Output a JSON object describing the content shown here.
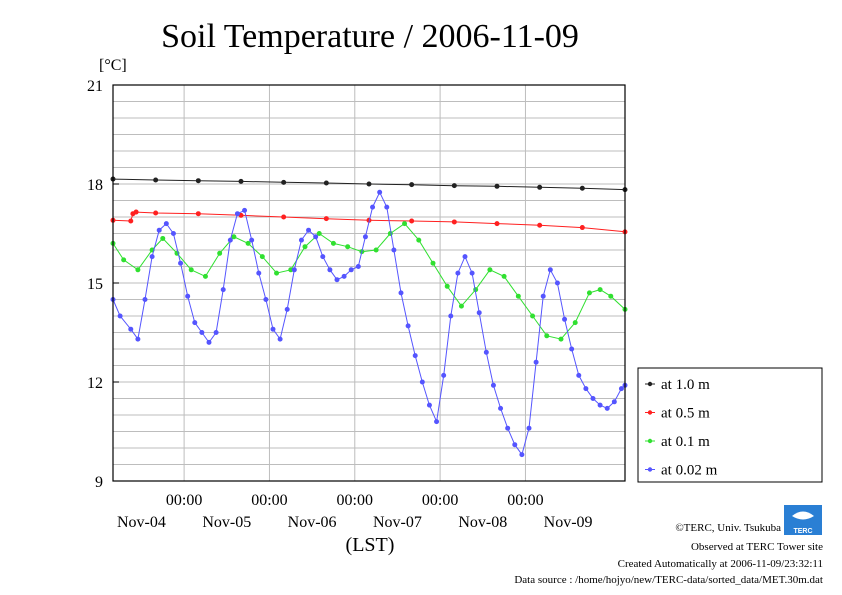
{
  "chart_data": {
    "type": "line",
    "title": "Soil Temperature / 2006-11-09",
    "yunit": "[°C]",
    "xlabel": "(LST)",
    "ylim": [
      9,
      21
    ],
    "yticks": [
      9,
      12,
      15,
      18,
      21
    ],
    "x_range_hours": [
      0,
      144
    ],
    "x_time_ticks": [
      "00:00",
      "00:00",
      "00:00",
      "00:00",
      "00:00"
    ],
    "x_date_labels": [
      "Nov-04",
      "Nov-05",
      "Nov-06",
      "Nov-07",
      "Nov-08",
      "Nov-09"
    ],
    "grid": true,
    "legend_position": "right",
    "series": [
      {
        "name": "at 1.0 m",
        "color": "#222222",
        "x": [
          0,
          12,
          24,
          36,
          48,
          60,
          72,
          84,
          96,
          108,
          120,
          132,
          144
        ],
        "y": [
          18.15,
          18.12,
          18.1,
          18.08,
          18.05,
          18.03,
          18.0,
          17.98,
          17.95,
          17.93,
          17.9,
          17.87,
          17.83
        ]
      },
      {
        "name": "at 0.5 m",
        "color": "#ff2020",
        "x": [
          0,
          5,
          5.6,
          6.5,
          12,
          24,
          36,
          48,
          60,
          72,
          84,
          96,
          108,
          120,
          132,
          144
        ],
        "y": [
          16.9,
          16.88,
          17.1,
          17.15,
          17.12,
          17.1,
          17.05,
          17.0,
          16.95,
          16.9,
          16.88,
          16.85,
          16.8,
          16.75,
          16.68,
          16.55
        ]
      },
      {
        "name": "at 0.1 m",
        "color": "#30e030",
        "x": [
          0,
          3,
          7,
          11,
          14,
          18,
          22,
          26,
          30,
          34,
          38,
          42,
          46,
          50,
          54,
          58,
          62,
          66,
          70,
          74,
          78,
          82,
          86,
          90,
          94,
          98,
          102,
          106,
          110,
          114,
          118,
          122,
          126,
          130,
          134,
          137,
          140,
          144
        ],
        "y": [
          16.2,
          15.7,
          15.4,
          16.0,
          16.35,
          15.9,
          15.4,
          15.2,
          15.9,
          16.4,
          16.2,
          15.8,
          15.3,
          15.4,
          16.1,
          16.5,
          16.2,
          16.1,
          15.95,
          16.0,
          16.5,
          16.8,
          16.3,
          15.6,
          14.9,
          14.3,
          14.8,
          15.4,
          15.2,
          14.6,
          14.0,
          13.4,
          13.3,
          13.8,
          14.7,
          14.8,
          14.6,
          14.2
        ]
      },
      {
        "name": "at 0.02 m",
        "color": "#5555ff",
        "x": [
          0,
          2,
          5,
          7,
          9,
          11,
          13,
          15,
          17,
          19,
          21,
          23,
          25,
          27,
          29,
          31,
          33,
          35,
          37,
          39,
          41,
          43,
          45,
          47,
          49,
          51,
          53,
          55,
          57,
          59,
          61,
          63,
          65,
          67,
          69,
          71,
          73,
          75,
          77,
          79,
          81,
          83,
          85,
          87,
          89,
          91,
          93,
          95,
          97,
          99,
          101,
          103,
          105,
          107,
          109,
          111,
          113,
          115,
          117,
          119,
          121,
          123,
          125,
          127,
          129,
          131,
          133,
          135,
          137,
          139,
          141,
          143,
          144
        ],
        "y": [
          14.5,
          14.0,
          13.6,
          13.3,
          14.5,
          15.8,
          16.6,
          16.8,
          16.5,
          15.6,
          14.6,
          13.8,
          13.5,
          13.2,
          13.5,
          14.8,
          16.3,
          17.1,
          17.2,
          16.3,
          15.3,
          14.5,
          13.6,
          13.3,
          14.2,
          15.4,
          16.3,
          16.6,
          16.4,
          15.8,
          15.4,
          15.1,
          15.2,
          15.4,
          15.5,
          16.4,
          17.3,
          17.75,
          17.3,
          16.0,
          14.7,
          13.7,
          12.8,
          12.0,
          11.3,
          10.8,
          12.2,
          14.0,
          15.3,
          15.8,
          15.3,
          14.1,
          12.9,
          11.9,
          11.2,
          10.6,
          10.1,
          9.8,
          10.6,
          12.6,
          14.6,
          15.4,
          15.0,
          13.9,
          13.0,
          12.2,
          11.8,
          11.5,
          11.3,
          11.2,
          11.4,
          11.8,
          11.9
        ]
      }
    ]
  },
  "credits": {
    "copyright": "©TERC, Univ. Tsukuba",
    "observed": "Observed at TERC Tower site",
    "created": "Created Automatically at 2006-11-09/23:32:11",
    "source": "Data source : /home/hojyo/new/TERC-data/sorted_data/MET.30m.dat",
    "logo_text": "TERC"
  }
}
